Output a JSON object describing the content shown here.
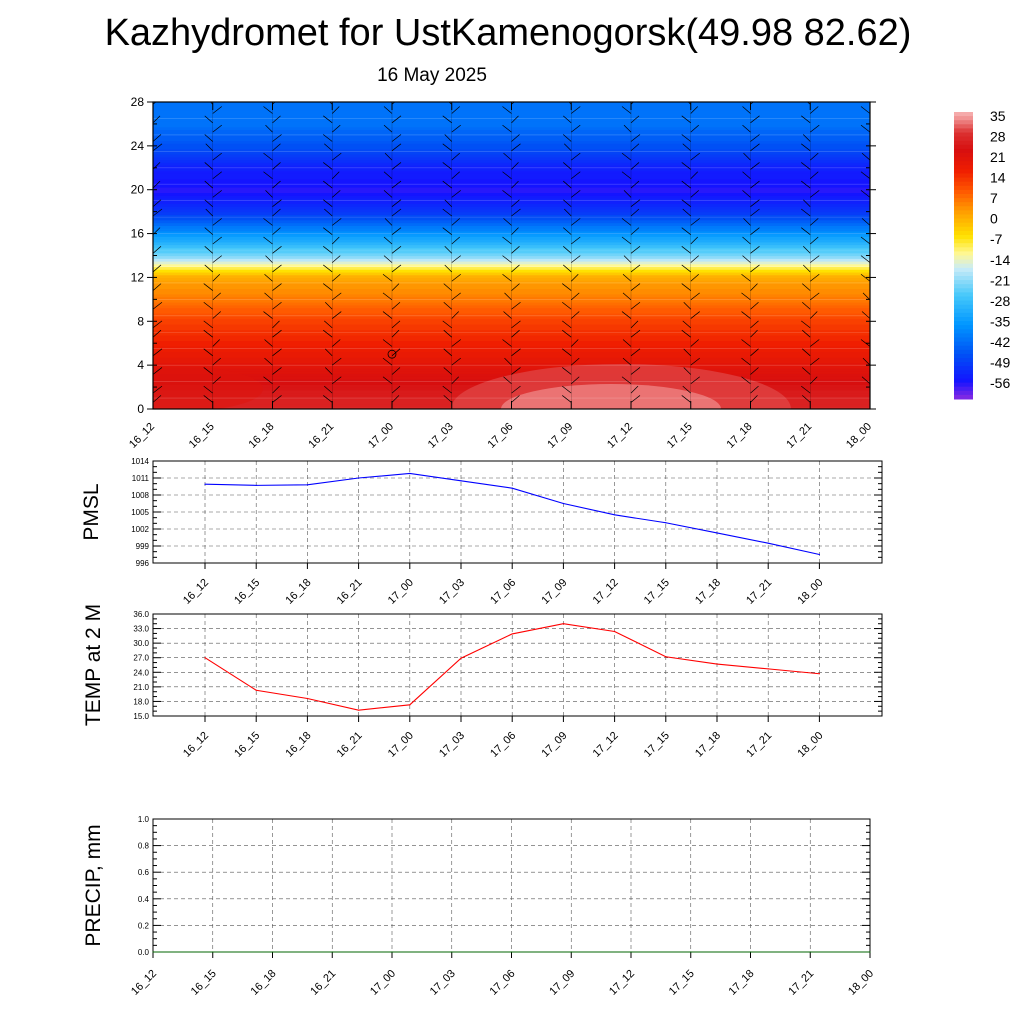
{
  "title": "Kazhydromet for UstKamenogorsk(49.98 82.62)",
  "subtitle": "16 May 2025",
  "chart_data": [
    {
      "type": "heatmap",
      "time_labels": [
        "16_12",
        "16_15",
        "16_18",
        "16_21",
        "17_00",
        "17_03",
        "17_06",
        "17_09",
        "17_12",
        "17_15",
        "17_18",
        "17_21",
        "18_00"
      ],
      "y_ticks": [
        0,
        4,
        8,
        12,
        16,
        20,
        24,
        28
      ],
      "ylim": [
        0,
        28
      ],
      "colorbar_labels": [
        "35",
        "28",
        "21",
        "14",
        "7",
        "0",
        "-7",
        "-14",
        "-21",
        "-28",
        "-35",
        "-42",
        "-49",
        "-56"
      ],
      "temperature_by_height": {
        "heights": [
          0,
          2,
          4,
          6,
          8,
          10,
          12,
          13,
          14,
          16,
          18,
          20,
          22,
          24,
          26,
          28
        ],
        "values": [
          28,
          25,
          21,
          17,
          13,
          7,
          2,
          -10,
          -21,
          -35,
          -49,
          -55,
          -52,
          -45,
          -40,
          -40
        ]
      }
    },
    {
      "type": "line",
      "ylabel": "PMSL",
      "x": [
        "16_12",
        "16_15",
        "16_18",
        "16_21",
        "17_00",
        "17_03",
        "17_06",
        "17_09",
        "17_12",
        "17_15",
        "17_18",
        "17_21",
        "18_00"
      ],
      "series": [
        {
          "values": [
            1009.9,
            1009.7,
            1009.8,
            1011.0,
            1011.8,
            1010.5,
            1009.2,
            1006.5,
            1004.5,
            1003.1,
            1001.3,
            999.5,
            997.5
          ],
          "color": "#0000ff"
        }
      ],
      "y_ticks": [
        "996",
        "999",
        "1002",
        "1005",
        "1008",
        "1011",
        "1014"
      ],
      "ylim": [
        996,
        1014
      ]
    },
    {
      "type": "line",
      "ylabel": "TEMP at 2 M",
      "x": [
        "16_12",
        "16_15",
        "16_18",
        "16_21",
        "17_00",
        "17_03",
        "17_06",
        "17_09",
        "17_12",
        "17_15",
        "17_18",
        "17_21",
        "18_00"
      ],
      "series": [
        {
          "values": [
            27.0,
            20.3,
            18.6,
            16.2,
            17.3,
            26.9,
            31.9,
            34.0,
            32.4,
            27.2,
            25.7,
            24.7,
            23.7
          ],
          "color": "#ff0000"
        }
      ],
      "y_ticks": [
        "15.0",
        "18.0",
        "21.0",
        "24.0",
        "27.0",
        "30.0",
        "33.0",
        "36.0"
      ],
      "ylim": [
        15,
        36
      ]
    },
    {
      "type": "line",
      "ylabel": "PRECIP, mm",
      "x": [
        "16_12",
        "16_15",
        "16_18",
        "16_21",
        "17_00",
        "17_03",
        "17_06",
        "17_09",
        "17_12",
        "17_15",
        "17_18",
        "17_21",
        "18_00"
      ],
      "series": [
        {
          "values": [
            0,
            0,
            0,
            0,
            0,
            0,
            0,
            0,
            0,
            0,
            0,
            0,
            0
          ],
          "color": "#006400"
        }
      ],
      "y_ticks": [
        "0.0",
        "0.2",
        "0.4",
        "0.6",
        "0.8",
        "1.0"
      ],
      "ylim": [
        0,
        1
      ]
    }
  ]
}
